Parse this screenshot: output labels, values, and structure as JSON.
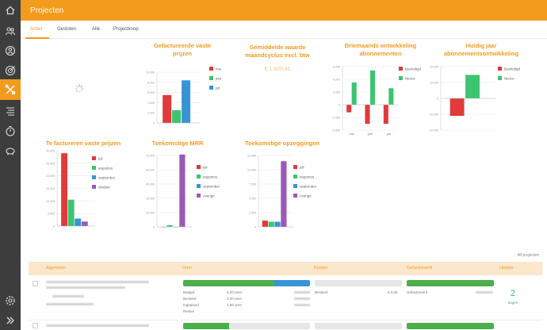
{
  "app": {
    "title": "Projecten"
  },
  "tabs": [
    "Actief",
    "Gesloten",
    "Alle",
    "Projectknop"
  ],
  "colors": {
    "accent": "#f29b1d",
    "red": "#e03a3a",
    "green": "#3cc46f",
    "blue": "#3794d6",
    "purple": "#9b59b6",
    "sidebar": "#3d3d3d"
  },
  "sidebar": {
    "icons": [
      "home-icon",
      "users-icon",
      "user-icon",
      "target-icon",
      "tools-icon",
      "list-icon",
      "timer-icon",
      "piggybank-icon"
    ],
    "bottom_icons": [
      "settings-icon",
      "expand-icon"
    ]
  },
  "summary": {
    "average_title": "Gemiddelde waarde maandcyclus excl. btw",
    "average_value": "€ 1.920,41"
  },
  "chart_data": [
    {
      "type": "bar",
      "title": "Gefactureerde vaste prijzen",
      "categories": [
        ""
      ],
      "series": [
        {
          "name": "mei",
          "values": [
            5500
          ]
        },
        {
          "name": "juni",
          "values": [
            2500
          ]
        },
        {
          "name": "juli",
          "values": [
            8400
          ]
        }
      ],
      "ylim": [
        0,
        10000
      ],
      "yticks": [
        "0",
        "2.000",
        "4.000",
        "6.000",
        "8.000",
        "10.000"
      ],
      "legend": "top-right"
    },
    {
      "type": "bar",
      "title": "Driemaands ontwikkeling abonnementen",
      "categories": [
        "mei",
        "juni",
        "juli"
      ],
      "series": [
        {
          "name": "Beëindigd",
          "values": [
            -1200,
            -3000,
            -3000
          ]
        },
        {
          "name": "Nieuw",
          "values": [
            3500,
            5400,
            2600
          ]
        }
      ],
      "ylim": [
        -4000,
        6000
      ],
      "yticks": [
        "-4.000",
        "-2.000",
        "0",
        "2.000",
        "4.000",
        "6.000"
      ],
      "legend": "top-right"
    },
    {
      "type": "bar",
      "title": "Huidig jaar abonnementsontwikkeling",
      "categories": [
        ""
      ],
      "series": [
        {
          "name": "Beëindigd",
          "values": [
            -11000
          ]
        },
        {
          "name": "Nieuw",
          "values": [
            14800
          ]
        }
      ],
      "ylim": [
        -20000,
        20000
      ],
      "yticks": [
        "-20.000",
        "-10.000",
        "0",
        "10.000",
        "20.000"
      ],
      "legend": "top-right"
    },
    {
      "type": "bar",
      "title": "Te factureren vaste prijzen",
      "categories": [
        ""
      ],
      "series": [
        {
          "name": "juli",
          "values": [
            29000
          ]
        },
        {
          "name": "augustus",
          "values": [
            10500
          ]
        },
        {
          "name": "september",
          "values": [
            3000
          ]
        },
        {
          "name": "oktober",
          "values": [
            1800
          ]
        }
      ],
      "ylim": [
        0,
        30000
      ],
      "yticks": [
        "0",
        "5.000",
        "10.000",
        "15.000",
        "20.000",
        "25.000",
        "30.000"
      ],
      "legend": "top-right"
    },
    {
      "type": "bar",
      "title": "Toekomstige MRR",
      "categories": [
        ""
      ],
      "series": [
        {
          "name": "juli",
          "values": [
            0
          ]
        },
        {
          "name": "augustus",
          "values": [
            1800
          ]
        },
        {
          "name": "september",
          "values": [
            0
          ]
        },
        {
          "name": "overige",
          "values": [
            76000
          ]
        }
      ],
      "ylim": [
        0,
        75000
      ],
      "yticks": [
        "0",
        "15.000",
        "30.000",
        "45.000",
        "60.000",
        "75.000"
      ],
      "legend": "top-right"
    },
    {
      "type": "bar",
      "title": "Toekomstige opzeggingen",
      "categories": [
        ""
      ],
      "series": [
        {
          "name": "juli",
          "values": [
            1100
          ]
        },
        {
          "name": "augustus",
          "values": [
            900
          ]
        },
        {
          "name": "september",
          "values": [
            900
          ]
        },
        {
          "name": "overige",
          "values": [
            11500
          ]
        }
      ],
      "ylim": [
        0,
        12500
      ],
      "yticks": [
        "0",
        "2.500",
        "5.000",
        "7.500",
        "10.000",
        "12.500"
      ],
      "legend": "top-right"
    }
  ],
  "table": {
    "count_label": "48 projecten",
    "headers": [
      "Algemeen",
      "Uren",
      "Kosten",
      "Gefactureerd",
      "Update"
    ],
    "row1": {
      "hours_progress": {
        "green": 0.72,
        "blue": 0.28
      },
      "hours_labels": [
        "Budget",
        "Besteed",
        "Ingepland",
        "Resten"
      ],
      "hours_values": [
        "4,00 uren",
        "3,00 uren",
        "1,00 uren",
        ""
      ],
      "costs_label": "Besteed",
      "costs_value": "€ 0,00",
      "invoiced_label": "Gefactureerd",
      "update_num": "2",
      "update_label": "dagen"
    }
  }
}
